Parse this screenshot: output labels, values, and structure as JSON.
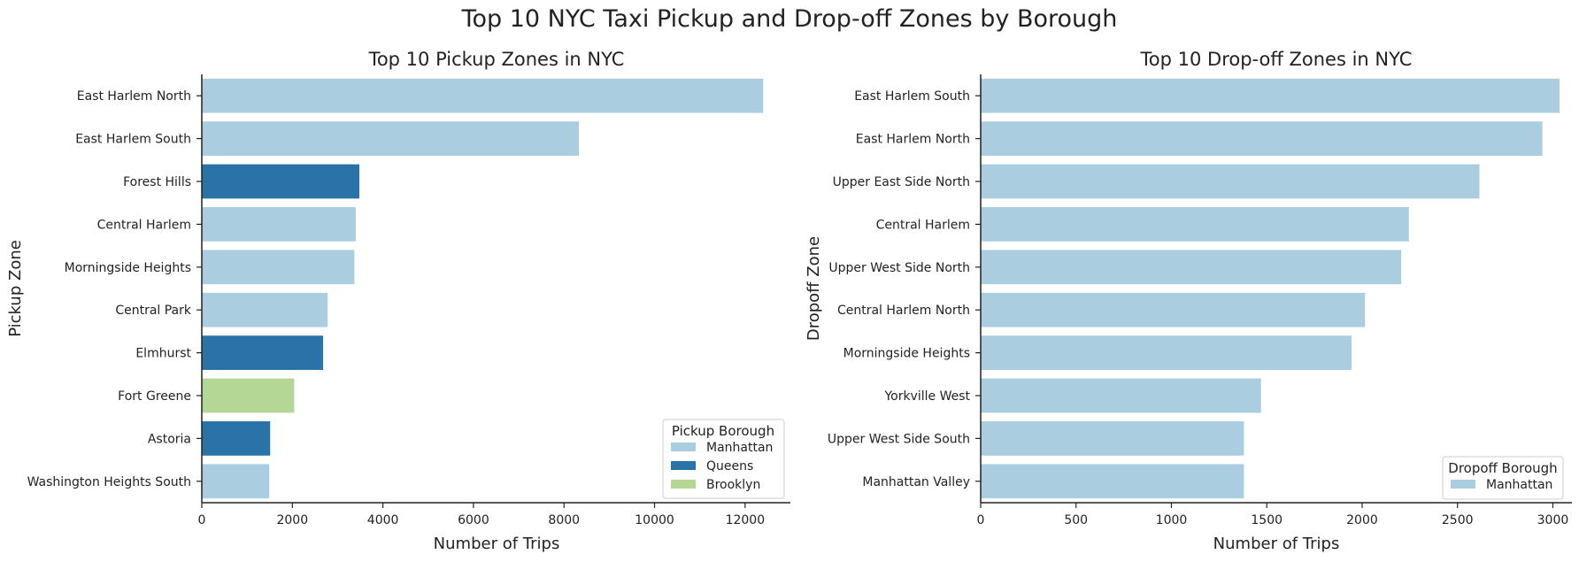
{
  "figure": {
    "title": "Top 10 NYC Taxi Pickup and Drop-off Zones by Borough"
  },
  "colors": {
    "Manhattan": "#abcde0",
    "Queens": "#2a73a8",
    "Brooklyn": "#b4d795",
    "axis": "#222222"
  },
  "chart_data": [
    {
      "type": "bar",
      "orientation": "horizontal",
      "title": "Top 10 Pickup Zones in NYC",
      "xlabel": "Number of Trips",
      "ylabel": "Pickup Zone",
      "xlim": [
        0,
        13000
      ],
      "xticks": [
        0,
        2000,
        4000,
        6000,
        8000,
        10000,
        12000
      ],
      "grid": false,
      "legend": {
        "title": "Pickup Borough",
        "placement": "lower-right",
        "entries": [
          "Manhattan",
          "Queens",
          "Brooklyn"
        ]
      },
      "categories": [
        "East Harlem North",
        "East Harlem South",
        "Forest Hills",
        "Central Harlem",
        "Morningside Heights",
        "Central Park",
        "Elmhurst",
        "Fort Greene",
        "Astoria",
        "Washington Heights South"
      ],
      "values": [
        12400,
        8330,
        3480,
        3400,
        3370,
        2780,
        2680,
        2040,
        1510,
        1490
      ],
      "groups": [
        "Manhattan",
        "Manhattan",
        "Queens",
        "Manhattan",
        "Manhattan",
        "Manhattan",
        "Queens",
        "Brooklyn",
        "Queens",
        "Manhattan"
      ]
    },
    {
      "type": "bar",
      "orientation": "horizontal",
      "title": "Top 10 Drop-off Zones in NYC",
      "xlabel": "Number of Trips",
      "ylabel": "Dropoff Zone",
      "xlim": [
        0,
        3100
      ],
      "xticks": [
        0,
        500,
        1000,
        1500,
        2000,
        2500,
        3000
      ],
      "grid": false,
      "legend": {
        "title": "Dropoff Borough",
        "placement": "lower-right",
        "entries": [
          "Manhattan"
        ]
      },
      "categories": [
        "East Harlem South",
        "East Harlem North",
        "Upper East Side North",
        "Central Harlem",
        "Upper West Side North",
        "Central Harlem North",
        "Morningside Heights",
        "Yorkville West",
        "Upper West Side South",
        "Manhattan Valley"
      ],
      "values": [
        3035,
        2945,
        2615,
        2245,
        2205,
        2015,
        1945,
        1470,
        1380,
        1380
      ],
      "groups": [
        "Manhattan",
        "Manhattan",
        "Manhattan",
        "Manhattan",
        "Manhattan",
        "Manhattan",
        "Manhattan",
        "Manhattan",
        "Manhattan",
        "Manhattan"
      ]
    }
  ]
}
